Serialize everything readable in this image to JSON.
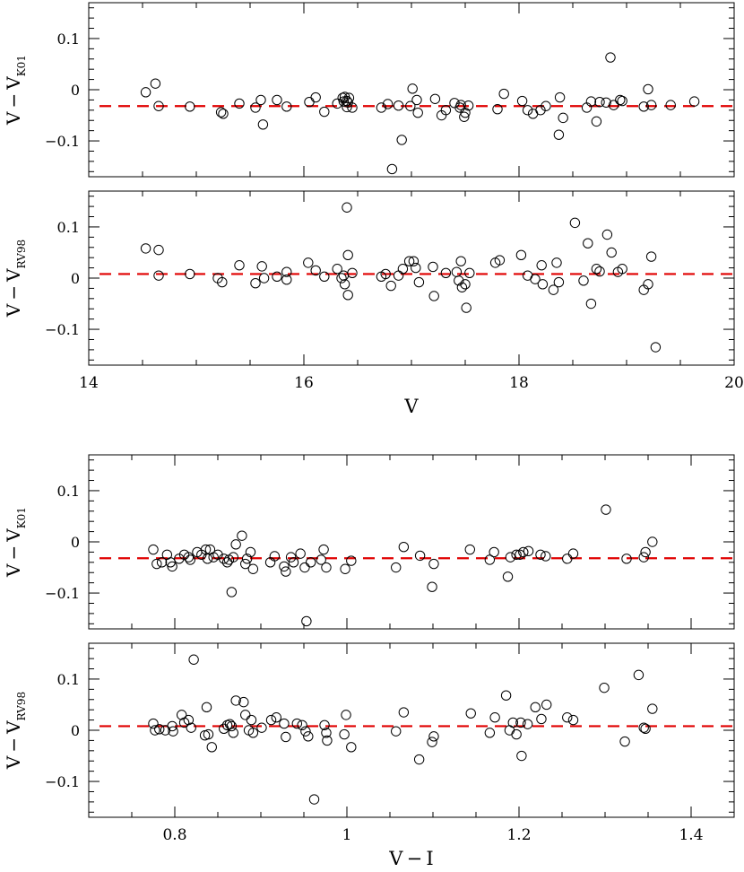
{
  "chart_data": [
    {
      "type": "scatter",
      "ylabel": {
        "main": "V − V",
        "sub": "K01"
      },
      "xlabel": "",
      "xlim": [
        14,
        20
      ],
      "ylim": [
        -0.17,
        0.17
      ],
      "xticks": [],
      "yticks": [
        {
          "v": 0.1,
          "label": "0.1"
        },
        {
          "v": 0,
          "label": "0"
        },
        {
          "v": -0.1,
          "label": "−0.1"
        }
      ],
      "mean_line": -0.032,
      "mean_color": "#e00000",
      "points": [
        [
          14.53,
          -0.005
        ],
        [
          14.62,
          0.012
        ],
        [
          14.65,
          -0.032
        ],
        [
          14.94,
          -0.033
        ],
        [
          15.23,
          -0.044
        ],
        [
          15.25,
          -0.047
        ],
        [
          15.4,
          -0.027
        ],
        [
          15.55,
          -0.035
        ],
        [
          15.6,
          -0.02
        ],
        [
          15.62,
          -0.068
        ],
        [
          15.75,
          -0.02
        ],
        [
          15.84,
          -0.033
        ],
        [
          16.05,
          -0.024
        ],
        [
          16.11,
          -0.015
        ],
        [
          16.19,
          -0.043
        ],
        [
          16.31,
          -0.027
        ],
        [
          16.36,
          -0.016
        ],
        [
          16.37,
          -0.023
        ],
        [
          16.38,
          -0.014
        ],
        [
          16.4,
          -0.022
        ],
        [
          16.42,
          -0.016
        ],
        [
          16.4,
          -0.034
        ],
        [
          16.41,
          -0.025
        ],
        [
          16.45,
          -0.035
        ],
        [
          16.72,
          -0.035
        ],
        [
          16.78,
          -0.028
        ],
        [
          16.82,
          -0.155
        ],
        [
          16.88,
          -0.031
        ],
        [
          16.91,
          -0.098
        ],
        [
          16.99,
          -0.032
        ],
        [
          17.01,
          0.002
        ],
        [
          17.05,
          -0.02
        ],
        [
          17.06,
          -0.045
        ],
        [
          17.22,
          -0.018
        ],
        [
          17.28,
          -0.05
        ],
        [
          17.32,
          -0.04
        ],
        [
          17.4,
          -0.026
        ],
        [
          17.45,
          -0.035
        ],
        [
          17.46,
          -0.03
        ],
        [
          17.49,
          -0.053
        ],
        [
          17.5,
          -0.045
        ],
        [
          17.53,
          -0.031
        ],
        [
          17.8,
          -0.038
        ],
        [
          17.86,
          -0.008
        ],
        [
          18.03,
          -0.022
        ],
        [
          18.08,
          -0.04
        ],
        [
          18.13,
          -0.047
        ],
        [
          18.2,
          -0.04
        ],
        [
          18.25,
          -0.032
        ],
        [
          18.37,
          -0.088
        ],
        [
          18.38,
          -0.015
        ],
        [
          18.41,
          -0.055
        ],
        [
          18.63,
          -0.035
        ],
        [
          18.67,
          -0.023
        ],
        [
          18.72,
          -0.062
        ],
        [
          18.75,
          -0.024
        ],
        [
          18.81,
          -0.025
        ],
        [
          18.85,
          0.063
        ],
        [
          18.88,
          -0.03
        ],
        [
          18.94,
          -0.02
        ],
        [
          18.96,
          -0.022
        ],
        [
          19.16,
          -0.033
        ],
        [
          19.2,
          0.001
        ],
        [
          19.23,
          -0.03
        ],
        [
          19.63,
          -0.023
        ],
        [
          19.41,
          -0.03
        ]
      ]
    },
    {
      "type": "scatter",
      "ylabel": {
        "main": "V − V",
        "sub": "RV98"
      },
      "xlabel": "V",
      "xlim": [
        14,
        20
      ],
      "ylim": [
        -0.17,
        0.17
      ],
      "xticks": [
        {
          "v": 14,
          "label": "14"
        },
        {
          "v": 16,
          "label": "16"
        },
        {
          "v": 18,
          "label": "18"
        },
        {
          "v": 20,
          "label": "20"
        }
      ],
      "yticks": [
        {
          "v": 0.1,
          "label": "0.1"
        },
        {
          "v": 0,
          "label": "0"
        },
        {
          "v": -0.1,
          "label": "−0.1"
        }
      ],
      "mean_line": 0.008,
      "mean_color": "#e00000",
      "points": [
        [
          14.53,
          0.058
        ],
        [
          14.65,
          0.055
        ],
        [
          14.65,
          0.005
        ],
        [
          14.94,
          0.008
        ],
        [
          15.2,
          0.0
        ],
        [
          15.24,
          -0.008
        ],
        [
          15.4,
          0.025
        ],
        [
          15.55,
          -0.01
        ],
        [
          15.61,
          0.023
        ],
        [
          15.63,
          0.0
        ],
        [
          15.75,
          0.003
        ],
        [
          15.84,
          0.012
        ],
        [
          15.84,
          -0.003
        ],
        [
          16.04,
          0.03
        ],
        [
          16.11,
          0.015
        ],
        [
          16.19,
          0.003
        ],
        [
          16.31,
          0.018
        ],
        [
          16.35,
          0.0
        ],
        [
          16.37,
          0.005
        ],
        [
          16.38,
          -0.012
        ],
        [
          16.41,
          0.045
        ],
        [
          16.41,
          -0.033
        ],
        [
          16.45,
          0.01
        ],
        [
          16.4,
          0.138
        ],
        [
          16.72,
          0.003
        ],
        [
          16.76,
          0.008
        ],
        [
          16.81,
          -0.015
        ],
        [
          16.88,
          0.005
        ],
        [
          16.92,
          0.018
        ],
        [
          16.98,
          0.033
        ],
        [
          17.02,
          0.033
        ],
        [
          17.04,
          0.02
        ],
        [
          17.07,
          -0.008
        ],
        [
          17.2,
          0.022
        ],
        [
          17.21,
          -0.035
        ],
        [
          17.32,
          0.01
        ],
        [
          17.42,
          0.012
        ],
        [
          17.44,
          -0.005
        ],
        [
          17.46,
          0.033
        ],
        [
          17.47,
          -0.018
        ],
        [
          17.5,
          -0.012
        ],
        [
          17.51,
          -0.058
        ],
        [
          17.54,
          0.01
        ],
        [
          17.78,
          0.03
        ],
        [
          17.82,
          0.035
        ],
        [
          18.02,
          0.045
        ],
        [
          18.08,
          0.005
        ],
        [
          18.15,
          -0.002
        ],
        [
          18.21,
          0.025
        ],
        [
          18.22,
          -0.012
        ],
        [
          18.32,
          -0.023
        ],
        [
          18.35,
          0.03
        ],
        [
          18.37,
          -0.008
        ],
        [
          18.52,
          0.108
        ],
        [
          18.6,
          -0.005
        ],
        [
          18.64,
          0.068
        ],
        [
          18.67,
          -0.05
        ],
        [
          18.72,
          0.018
        ],
        [
          18.75,
          0.013
        ],
        [
          18.82,
          0.085
        ],
        [
          18.86,
          0.05
        ],
        [
          18.92,
          0.012
        ],
        [
          18.96,
          0.018
        ],
        [
          19.16,
          -0.023
        ],
        [
          19.2,
          -0.012
        ],
        [
          19.23,
          0.042
        ],
        [
          19.27,
          -0.135
        ]
      ]
    },
    {
      "type": "scatter",
      "ylabel": {
        "main": "V − V",
        "sub": "K01"
      },
      "xlabel": "",
      "xlim": [
        0.7,
        1.45
      ],
      "ylim": [
        -0.17,
        0.17
      ],
      "xticks": [],
      "yticks": [
        {
          "v": 0.1,
          "label": "0.1"
        },
        {
          "v": 0,
          "label": "0"
        },
        {
          "v": -0.1,
          "label": "−0.1"
        }
      ],
      "mean_line": -0.032,
      "mean_color": "#e00000",
      "points": [
        [
          0.775,
          -0.015
        ],
        [
          0.779,
          -0.043
        ],
        [
          0.785,
          -0.04
        ],
        [
          0.791,
          -0.025
        ],
        [
          0.795,
          -0.04
        ],
        [
          0.797,
          -0.048
        ],
        [
          0.805,
          -0.033
        ],
        [
          0.811,
          -0.025
        ],
        [
          0.816,
          -0.03
        ],
        [
          0.818,
          -0.035
        ],
        [
          0.826,
          -0.02
        ],
        [
          0.831,
          -0.025
        ],
        [
          0.836,
          -0.015
        ],
        [
          0.838,
          -0.033
        ],
        [
          0.841,
          -0.015
        ],
        [
          0.845,
          -0.03
        ],
        [
          0.85,
          -0.025
        ],
        [
          0.857,
          -0.033
        ],
        [
          0.861,
          -0.04
        ],
        [
          0.863,
          -0.035
        ],
        [
          0.866,
          -0.098
        ],
        [
          0.868,
          -0.03
        ],
        [
          0.871,
          -0.005
        ],
        [
          0.878,
          0.012
        ],
        [
          0.882,
          -0.043
        ],
        [
          0.884,
          -0.033
        ],
        [
          0.888,
          -0.02
        ],
        [
          0.891,
          -0.053
        ],
        [
          0.911,
          -0.04
        ],
        [
          0.916,
          -0.028
        ],
        [
          0.927,
          -0.048
        ],
        [
          0.929,
          -0.058
        ],
        [
          0.935,
          -0.03
        ],
        [
          0.938,
          -0.04
        ],
        [
          0.946,
          -0.023
        ],
        [
          0.951,
          -0.05
        ],
        [
          0.953,
          -0.155
        ],
        [
          0.958,
          -0.04
        ],
        [
          0.97,
          -0.035
        ],
        [
          0.973,
          -0.015
        ],
        [
          0.976,
          -0.05
        ],
        [
          0.998,
          -0.053
        ],
        [
          1.005,
          -0.037
        ],
        [
          1.057,
          -0.05
        ],
        [
          1.066,
          -0.01
        ],
        [
          1.085,
          -0.027
        ],
        [
          1.099,
          -0.088
        ],
        [
          1.101,
          -0.043
        ],
        [
          1.143,
          -0.015
        ],
        [
          1.166,
          -0.035
        ],
        [
          1.171,
          -0.02
        ],
        [
          1.187,
          -0.068
        ],
        [
          1.19,
          -0.03
        ],
        [
          1.197,
          -0.025
        ],
        [
          1.205,
          -0.02
        ],
        [
          1.211,
          -0.018
        ],
        [
          1.231,
          -0.028
        ],
        [
          1.256,
          -0.033
        ],
        [
          1.263,
          -0.023
        ],
        [
          1.301,
          0.063
        ],
        [
          1.325,
          -0.033
        ],
        [
          1.345,
          -0.03
        ],
        [
          1.347,
          -0.02
        ],
        [
          1.355,
          0.0
        ],
        [
          1.201,
          -0.025
        ],
        [
          1.225,
          -0.025
        ]
      ]
    },
    {
      "type": "scatter",
      "ylabel": {
        "main": "V − V",
        "sub": "RV98"
      },
      "xlabel": "V − I",
      "xlim": [
        0.7,
        1.45
      ],
      "ylim": [
        -0.17,
        0.17
      ],
      "xticks": [
        {
          "v": 0.8,
          "label": "0.8"
        },
        {
          "v": 1.0,
          "label": "1"
        },
        {
          "v": 1.2,
          "label": "1.2"
        },
        {
          "v": 1.4,
          "label": "1.4"
        }
      ],
      "yticks": [
        {
          "v": 0.1,
          "label": "0.1"
        },
        {
          "v": 0,
          "label": "0"
        },
        {
          "v": -0.1,
          "label": "−0.1"
        }
      ],
      "mean_line": 0.008,
      "mean_color": "#e00000",
      "points": [
        [
          0.775,
          0.013
        ],
        [
          0.777,
          0.0
        ],
        [
          0.782,
          0.002
        ],
        [
          0.789,
          0.0
        ],
        [
          0.797,
          0.008
        ],
        [
          0.798,
          -0.002
        ],
        [
          0.808,
          0.03
        ],
        [
          0.811,
          0.015
        ],
        [
          0.816,
          0.02
        ],
        [
          0.819,
          0.005
        ],
        [
          0.822,
          0.138
        ],
        [
          0.835,
          -0.01
        ],
        [
          0.837,
          0.045
        ],
        [
          0.839,
          -0.008
        ],
        [
          0.843,
          -0.033
        ],
        [
          0.857,
          0.003
        ],
        [
          0.861,
          0.01
        ],
        [
          0.864,
          0.012
        ],
        [
          0.866,
          0.008
        ],
        [
          0.868,
          -0.005
        ],
        [
          0.871,
          0.058
        ],
        [
          0.88,
          0.055
        ],
        [
          0.882,
          0.03
        ],
        [
          0.886,
          0.0
        ],
        [
          0.889,
          0.02
        ],
        [
          0.891,
          -0.005
        ],
        [
          0.901,
          0.005
        ],
        [
          0.912,
          0.02
        ],
        [
          0.918,
          0.025
        ],
        [
          0.927,
          0.013
        ],
        [
          0.929,
          -0.013
        ],
        [
          0.942,
          0.013
        ],
        [
          0.948,
          0.01
        ],
        [
          0.952,
          -0.002
        ],
        [
          0.955,
          -0.012
        ],
        [
          0.962,
          -0.135
        ],
        [
          0.974,
          0.01
        ],
        [
          0.976,
          -0.005
        ],
        [
          0.977,
          -0.02
        ],
        [
          0.997,
          -0.008
        ],
        [
          0.999,
          0.03
        ],
        [
          1.005,
          -0.033
        ],
        [
          1.057,
          -0.002
        ],
        [
          1.066,
          0.035
        ],
        [
          1.084,
          -0.057
        ],
        [
          1.101,
          -0.012
        ],
        [
          1.099,
          -0.023
        ],
        [
          1.144,
          0.033
        ],
        [
          1.166,
          -0.005
        ],
        [
          1.172,
          0.025
        ],
        [
          1.185,
          0.068
        ],
        [
          1.189,
          0.0
        ],
        [
          1.193,
          0.015
        ],
        [
          1.197,
          -0.008
        ],
        [
          1.202,
          0.015
        ],
        [
          1.203,
          -0.05
        ],
        [
          1.21,
          0.012
        ],
        [
          1.219,
          0.045
        ],
        [
          1.226,
          0.022
        ],
        [
          1.232,
          0.05
        ],
        [
          1.256,
          0.025
        ],
        [
          1.263,
          0.02
        ],
        [
          1.299,
          0.083
        ],
        [
          1.323,
          -0.022
        ],
        [
          1.339,
          0.108
        ],
        [
          1.345,
          0.005
        ],
        [
          1.347,
          0.003
        ],
        [
          1.355,
          0.042
        ]
      ]
    }
  ]
}
